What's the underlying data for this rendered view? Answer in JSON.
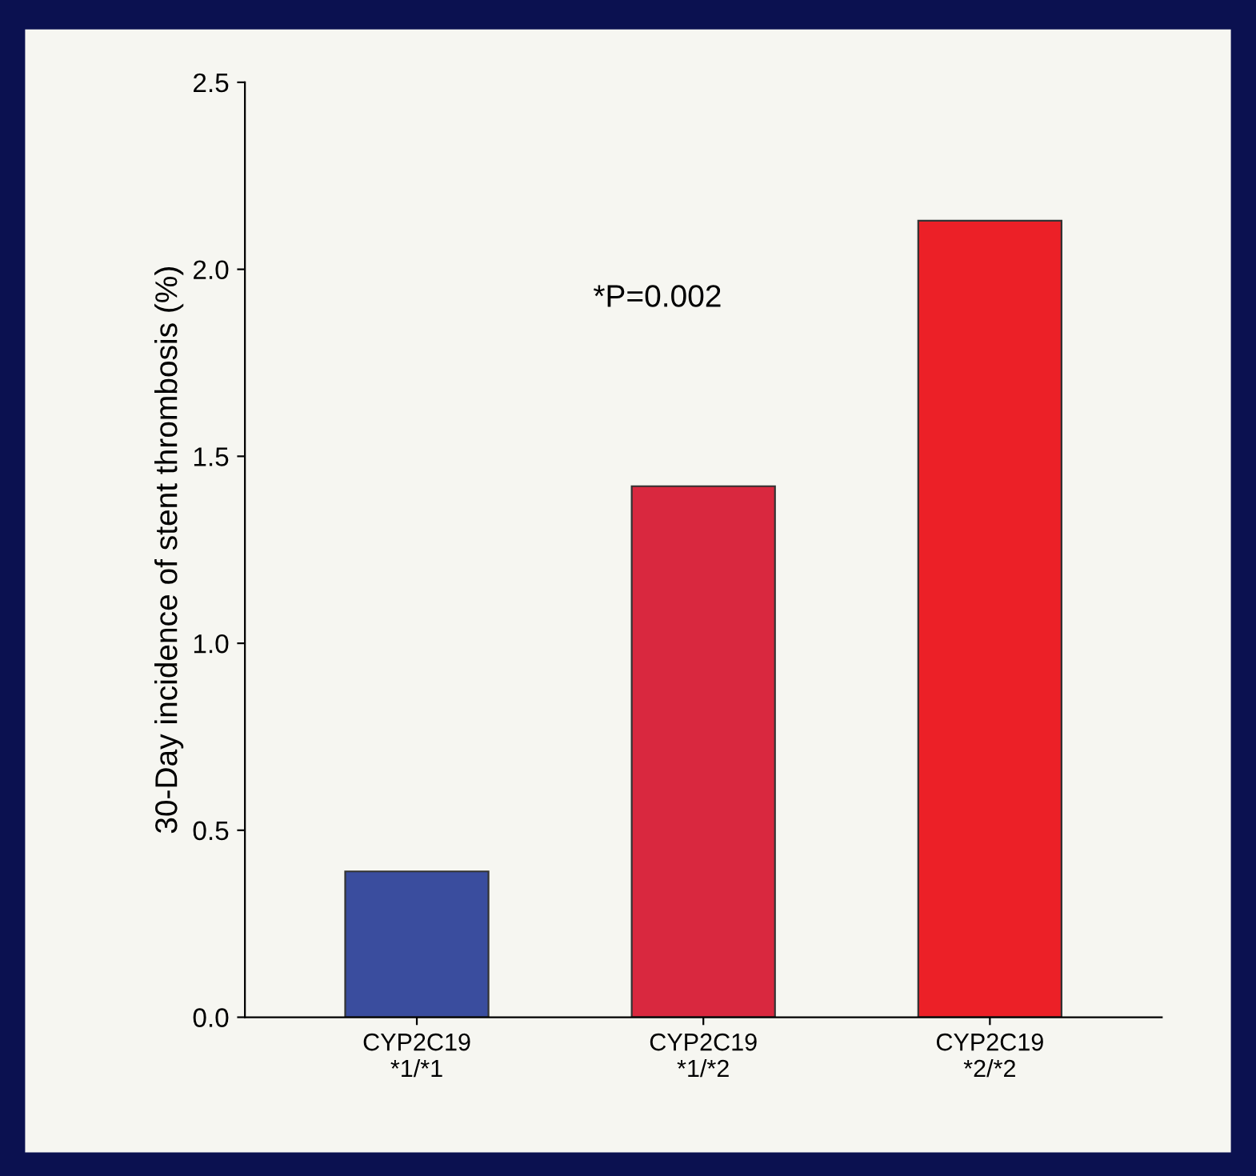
{
  "chart_data": {
    "type": "bar",
    "ylabel": "30-Day incidence of stent thrombosis (%)",
    "categories": [
      "CYP2C19\n*1/*1",
      "CYP2C19\n*1/*2",
      "CYP2C19\n*2/*2"
    ],
    "values": [
      0.39,
      1.42,
      2.13
    ],
    "colors": [
      "#3a4d9e",
      "#d9283f",
      "#ec2027"
    ],
    "ylim": [
      0,
      2.5
    ],
    "yticks": [
      "0.0",
      0.5,
      "1.0",
      1.5,
      "2.0",
      2.5
    ],
    "annotations": [
      "*P=0.002"
    ],
    "grid": false,
    "legend": false
  }
}
